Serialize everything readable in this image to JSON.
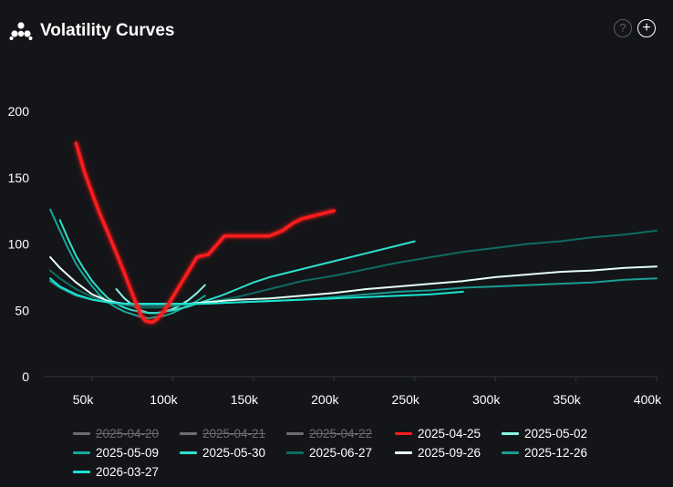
{
  "header": {
    "title": "Volatility Curves",
    "help_glyph": "?",
    "plus_glyph": "+",
    "logo_icon": "cluster-logo-icon",
    "help_icon": "question-circle-icon",
    "plus_icon": "plus-circle-icon"
  },
  "chart_data": {
    "type": "line",
    "title": "Volatility Curves",
    "xlabel": "",
    "ylabel": "",
    "xlim": [
      20000,
      400000
    ],
    "ylim": [
      0,
      200
    ],
    "x_ticks": [
      50000,
      100000,
      150000,
      200000,
      250000,
      300000,
      350000,
      400000
    ],
    "x_tick_labels": [
      "50k",
      "100k",
      "150k",
      "200k",
      "250k",
      "300k",
      "350k",
      "400k"
    ],
    "y_ticks": [
      0,
      50,
      100,
      150,
      200
    ],
    "y_tick_labels": [
      "0",
      "50",
      "100",
      "150",
      "200"
    ],
    "grid": false,
    "legend_position": "bottom",
    "series": [
      {
        "name": "2025-04-20",
        "color": "#6b6d70",
        "visible": false,
        "points": []
      },
      {
        "name": "2025-04-21",
        "color": "#6b6d70",
        "visible": false,
        "points": []
      },
      {
        "name": "2025-04-22",
        "color": "#6b6d70",
        "visible": false,
        "points": []
      },
      {
        "name": "2025-04-25",
        "color": "#ff1a1a",
        "visible": true,
        "glow": true,
        "points": [
          [
            40000,
            176
          ],
          [
            45000,
            155
          ],
          [
            50000,
            138
          ],
          [
            55000,
            122
          ],
          [
            60000,
            108
          ],
          [
            65000,
            93
          ],
          [
            70000,
            78
          ],
          [
            75000,
            62
          ],
          [
            80000,
            47
          ],
          [
            83000,
            42
          ],
          [
            87000,
            41
          ],
          [
            90000,
            43
          ],
          [
            95000,
            50
          ],
          [
            100000,
            60
          ],
          [
            105000,
            70
          ],
          [
            110000,
            80
          ],
          [
            115000,
            90
          ],
          [
            118000,
            91
          ],
          [
            122000,
            92
          ],
          [
            127000,
            99
          ],
          [
            132000,
            106
          ],
          [
            140000,
            106
          ],
          [
            150000,
            106
          ],
          [
            160000,
            106
          ],
          [
            168000,
            110
          ],
          [
            175000,
            116
          ],
          [
            180000,
            119
          ],
          [
            190000,
            122
          ],
          [
            200000,
            125
          ]
        ]
      },
      {
        "name": "2025-05-02",
        "color": "#86f5e4",
        "visible": true,
        "points": [
          [
            65000,
            66
          ],
          [
            70000,
            59
          ],
          [
            75000,
            54
          ],
          [
            80000,
            50
          ],
          [
            85000,
            48
          ],
          [
            90000,
            48
          ],
          [
            95000,
            49
          ],
          [
            100000,
            51
          ],
          [
            105000,
            54
          ],
          [
            110000,
            58
          ],
          [
            115000,
            63
          ],
          [
            120000,
            69
          ]
        ]
      },
      {
        "name": "2025-05-09",
        "color": "#14a99a",
        "visible": true,
        "points": [
          [
            24000,
            126
          ],
          [
            30000,
            110
          ],
          [
            35000,
            97
          ],
          [
            40000,
            85
          ],
          [
            45000,
            76
          ],
          [
            50000,
            68
          ],
          [
            55000,
            61
          ],
          [
            60000,
            56
          ],
          [
            65000,
            52
          ],
          [
            70000,
            49
          ],
          [
            75000,
            47
          ],
          [
            80000,
            45
          ],
          [
            85000,
            44
          ],
          [
            90000,
            45
          ],
          [
            95000,
            46
          ],
          [
            100000,
            48
          ],
          [
            105000,
            51
          ],
          [
            110000,
            54
          ],
          [
            115000,
            57
          ],
          [
            120000,
            61
          ]
        ]
      },
      {
        "name": "2025-05-30",
        "color": "#2de0cd",
        "visible": true,
        "points": [
          [
            30000,
            118
          ],
          [
            35000,
            104
          ],
          [
            40000,
            91
          ],
          [
            45000,
            81
          ],
          [
            50000,
            72
          ],
          [
            55000,
            65
          ],
          [
            60000,
            59
          ],
          [
            65000,
            55
          ],
          [
            70000,
            52
          ],
          [
            75000,
            50
          ],
          [
            80000,
            49
          ],
          [
            85000,
            48
          ],
          [
            90000,
            48
          ],
          [
            100000,
            50
          ],
          [
            110000,
            53
          ],
          [
            120000,
            57
          ],
          [
            130000,
            61
          ],
          [
            140000,
            66
          ],
          [
            150000,
            71
          ],
          [
            160000,
            75
          ],
          [
            180000,
            81
          ],
          [
            200000,
            87
          ],
          [
            220000,
            93
          ],
          [
            240000,
            99
          ],
          [
            250000,
            102
          ]
        ]
      },
      {
        "name": "2025-06-27",
        "color": "#0e6c63",
        "visible": true,
        "points": [
          [
            24000,
            80
          ],
          [
            30000,
            74
          ],
          [
            40000,
            66
          ],
          [
            50000,
            60
          ],
          [
            60000,
            56
          ],
          [
            70000,
            54
          ],
          [
            80000,
            52
          ],
          [
            90000,
            52
          ],
          [
            100000,
            53
          ],
          [
            110000,
            55
          ],
          [
            120000,
            56
          ],
          [
            130000,
            58
          ],
          [
            140000,
            60
          ],
          [
            150000,
            63
          ],
          [
            160000,
            66
          ],
          [
            170000,
            69
          ],
          [
            180000,
            72
          ],
          [
            200000,
            76
          ],
          [
            220000,
            81
          ],
          [
            240000,
            86
          ],
          [
            260000,
            90
          ],
          [
            280000,
            94
          ],
          [
            300000,
            97
          ],
          [
            320000,
            100
          ],
          [
            340000,
            102
          ],
          [
            360000,
            105
          ],
          [
            380000,
            107
          ],
          [
            400000,
            110
          ]
        ]
      },
      {
        "name": "2025-09-26",
        "color": "#e6fff9",
        "visible": true,
        "points": [
          [
            24000,
            90
          ],
          [
            30000,
            82
          ],
          [
            40000,
            71
          ],
          [
            50000,
            62
          ],
          [
            60000,
            57
          ],
          [
            70000,
            55
          ],
          [
            80000,
            54
          ],
          [
            90000,
            54
          ],
          [
            100000,
            55
          ],
          [
            110000,
            55
          ],
          [
            120000,
            56
          ],
          [
            140000,
            58
          ],
          [
            160000,
            59
          ],
          [
            180000,
            61
          ],
          [
            200000,
            63
          ],
          [
            220000,
            66
          ],
          [
            240000,
            68
          ],
          [
            260000,
            70
          ],
          [
            280000,
            72
          ],
          [
            300000,
            75
          ],
          [
            320000,
            77
          ],
          [
            340000,
            79
          ],
          [
            360000,
            80
          ],
          [
            380000,
            82
          ],
          [
            400000,
            83
          ]
        ]
      },
      {
        "name": "2025-12-26",
        "color": "#1a9d93",
        "visible": true,
        "points": [
          [
            24000,
            72
          ],
          [
            30000,
            67
          ],
          [
            40000,
            61
          ],
          [
            50000,
            58
          ],
          [
            60000,
            56
          ],
          [
            70000,
            55
          ],
          [
            80000,
            54
          ],
          [
            90000,
            54
          ],
          [
            100000,
            54
          ],
          [
            120000,
            55
          ],
          [
            140000,
            56
          ],
          [
            160000,
            57
          ],
          [
            180000,
            58
          ],
          [
            200000,
            60
          ],
          [
            220000,
            62
          ],
          [
            240000,
            64
          ],
          [
            260000,
            65
          ],
          [
            280000,
            67
          ],
          [
            300000,
            68
          ],
          [
            320000,
            69
          ],
          [
            340000,
            70
          ],
          [
            360000,
            71
          ],
          [
            380000,
            73
          ],
          [
            400000,
            74
          ]
        ]
      },
      {
        "name": "2026-03-27",
        "color": "#1be3d2",
        "visible": true,
        "points": [
          [
            24000,
            74
          ],
          [
            30000,
            68
          ],
          [
            40000,
            62
          ],
          [
            50000,
            58
          ],
          [
            60000,
            56
          ],
          [
            70000,
            55
          ],
          [
            80000,
            55
          ],
          [
            90000,
            55
          ],
          [
            100000,
            55
          ],
          [
            120000,
            55
          ],
          [
            140000,
            56
          ],
          [
            160000,
            57
          ],
          [
            180000,
            58
          ],
          [
            200000,
            59
          ],
          [
            220000,
            60
          ],
          [
            240000,
            61
          ],
          [
            260000,
            62
          ],
          [
            280000,
            64
          ]
        ]
      }
    ]
  }
}
